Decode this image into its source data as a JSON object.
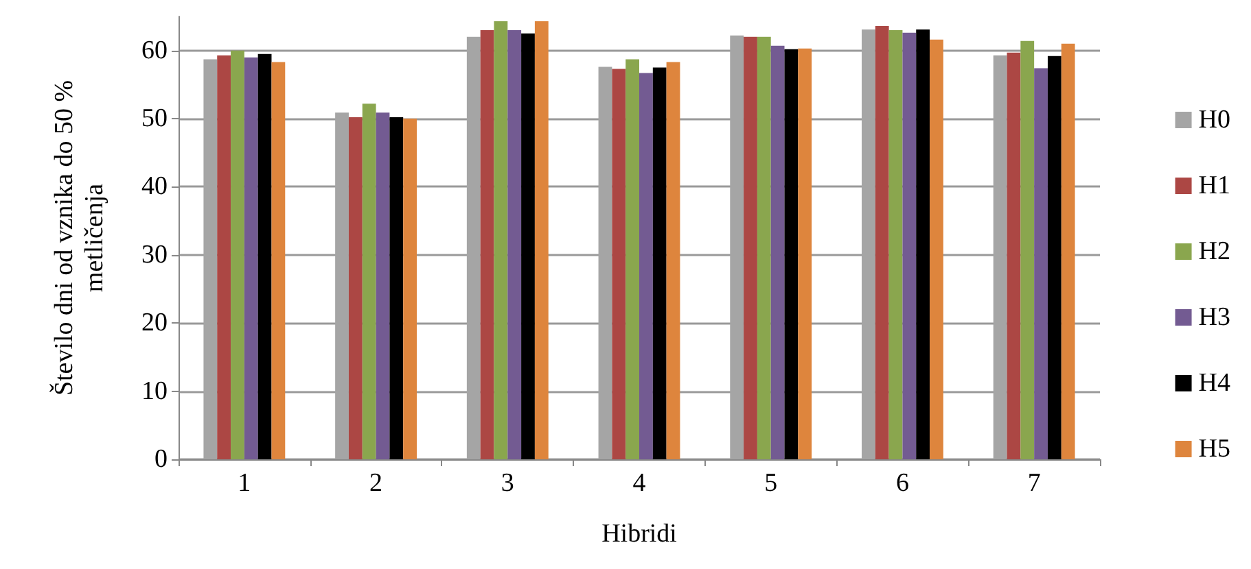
{
  "chart_data": {
    "type": "bar",
    "xlabel": "Hibridi",
    "ylabel": "Število dni od vznika do 50 %\nmetličenja",
    "categories": [
      "1",
      "2",
      "3",
      "4",
      "5",
      "6",
      "7"
    ],
    "series": [
      {
        "name": "H0",
        "color": "#a5a5a5",
        "values": [
          58.7,
          50.9,
          62.0,
          57.6,
          62.2,
          63.1,
          59.3
        ]
      },
      {
        "name": "H1",
        "color": "#ac4744",
        "values": [
          59.3,
          50.2,
          63.0,
          57.3,
          62.0,
          63.6,
          59.7
        ]
      },
      {
        "name": "H2",
        "color": "#8aa64e",
        "values": [
          60.0,
          52.2,
          64.3,
          58.7,
          62.0,
          63.0,
          61.4
        ]
      },
      {
        "name": "H3",
        "color": "#735b92",
        "values": [
          59.0,
          50.9,
          63.0,
          56.7,
          60.7,
          62.6,
          57.4
        ]
      },
      {
        "name": "H4",
        "color": "#000000",
        "values": [
          59.5,
          50.2,
          62.5,
          57.5,
          60.2,
          63.1,
          59.2
        ]
      },
      {
        "name": "H5",
        "color": "#de853d",
        "values": [
          58.3,
          50.0,
          64.3,
          58.3,
          60.3,
          61.6,
          61.0
        ]
      }
    ],
    "ylim": [
      0,
      65
    ],
    "yticks": [
      0,
      10,
      20,
      30,
      40,
      50,
      60
    ],
    "grid": "y",
    "legend": "right"
  }
}
